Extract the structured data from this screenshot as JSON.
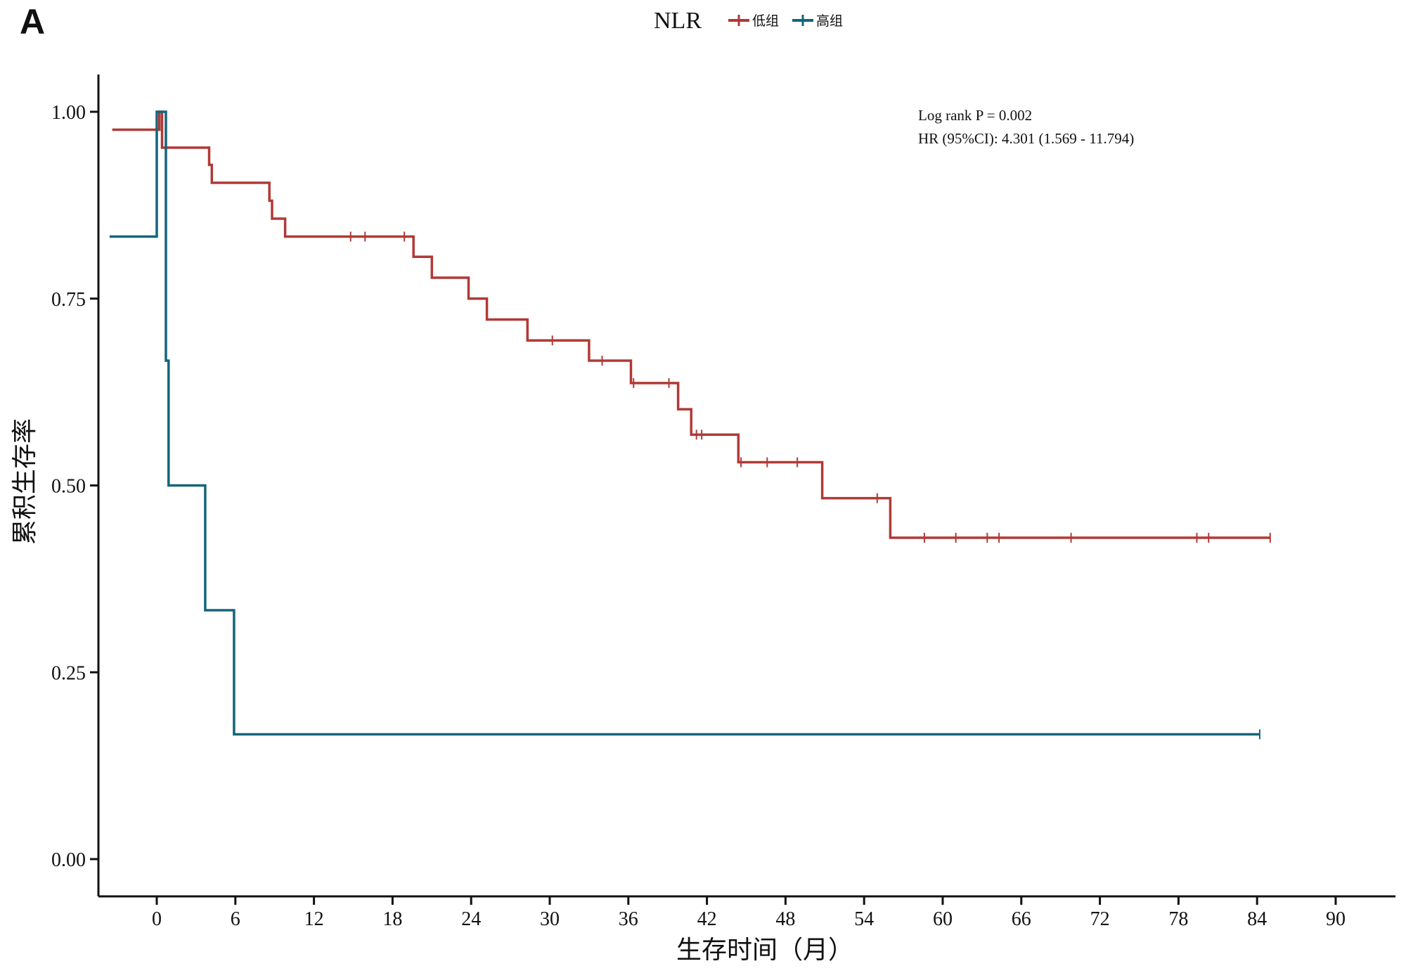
{
  "panel_label": "A",
  "chart_data": {
    "type": "line",
    "subtype": "kaplan-meier",
    "legend": {
      "title": "NLR",
      "position": "top-center"
    },
    "xlabel": "生存时间（月）",
    "ylabel": "累积生存率",
    "xlim": [
      -4,
      92
    ],
    "ylim": [
      -0.05,
      1.05
    ],
    "xticks": [
      0,
      6,
      12,
      18,
      24,
      30,
      36,
      42,
      48,
      54,
      60,
      66,
      72,
      78,
      84,
      90
    ],
    "yticks": [
      0.0,
      0.25,
      0.5,
      0.75,
      1.0
    ],
    "ytick_labels": [
      "0.00",
      "0.25",
      "0.50",
      "0.75",
      "1.00"
    ],
    "annotations": [
      "Log rank P = 0.002",
      "HR (95%CI): 4.301 (1.569 - 11.794)"
    ],
    "series": [
      {
        "name": "低组",
        "color": "#b03a36",
        "steps": [
          [
            -3.4,
            0.976
          ],
          [
            0,
            0.976
          ],
          [
            0.2,
            1.0
          ],
          [
            0.4,
            0.952
          ],
          [
            3.9,
            0.952
          ],
          [
            4.0,
            0.929
          ],
          [
            4.2,
            0.905
          ],
          [
            8.5,
            0.905
          ],
          [
            8.6,
            0.881
          ],
          [
            8.8,
            0.857
          ],
          [
            9.8,
            0.833
          ],
          [
            19.5,
            0.833
          ],
          [
            19.6,
            0.806
          ],
          [
            21.0,
            0.778
          ],
          [
            23.8,
            0.75
          ],
          [
            25.2,
            0.722
          ],
          [
            28.3,
            0.694
          ],
          [
            33.0,
            0.667
          ],
          [
            36.2,
            0.637
          ],
          [
            39.8,
            0.602
          ],
          [
            40.8,
            0.568
          ],
          [
            44.4,
            0.531
          ],
          [
            50.8,
            0.483
          ],
          [
            56.0,
            0.43
          ],
          [
            85.0,
            0.43
          ]
        ],
        "censored": [
          [
            14.8,
            0.833
          ],
          [
            15.9,
            0.833
          ],
          [
            18.9,
            0.833
          ],
          [
            30.2,
            0.694
          ],
          [
            34.0,
            0.667
          ],
          [
            36.4,
            0.637
          ],
          [
            39.1,
            0.637
          ],
          [
            41.2,
            0.568
          ],
          [
            41.6,
            0.568
          ],
          [
            44.6,
            0.531
          ],
          [
            46.6,
            0.531
          ],
          [
            48.9,
            0.531
          ],
          [
            55.0,
            0.483
          ],
          [
            58.6,
            0.43
          ],
          [
            61.0,
            0.43
          ],
          [
            63.4,
            0.43
          ],
          [
            64.3,
            0.43
          ],
          [
            69.8,
            0.43
          ],
          [
            79.4,
            0.43
          ],
          [
            80.3,
            0.43
          ],
          [
            85.0,
            0.43
          ]
        ]
      },
      {
        "name": "高组",
        "color": "#15657a",
        "steps": [
          [
            -3.6,
            0.833
          ],
          [
            0,
            0.833
          ],
          [
            0.0,
            1.0
          ],
          [
            0.7,
            1.0
          ],
          [
            0.7,
            0.667
          ],
          [
            0.9,
            0.667
          ],
          [
            0.9,
            0.5
          ],
          [
            3.7,
            0.5
          ],
          [
            3.7,
            0.333
          ],
          [
            5.9,
            0.333
          ],
          [
            5.9,
            0.167
          ],
          [
            84.2,
            0.167
          ]
        ],
        "censored": [
          [
            84.2,
            0.167
          ]
        ]
      }
    ]
  }
}
